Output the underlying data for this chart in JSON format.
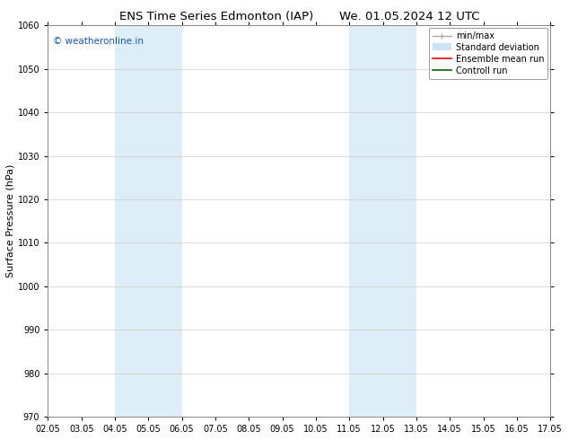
{
  "title_left": "ENS Time Series Edmonton (IAP)",
  "title_right": "We. 01.05.2024 12 UTC",
  "ylabel": "Surface Pressure (hPa)",
  "ylim": [
    970,
    1060
  ],
  "yticks": [
    970,
    980,
    990,
    1000,
    1010,
    1020,
    1030,
    1040,
    1050,
    1060
  ],
  "xlim_min": 0,
  "xlim_max": 15,
  "xtick_labels": [
    "02.05",
    "03.05",
    "04.05",
    "05.05",
    "06.05",
    "07.05",
    "08.05",
    "09.05",
    "10.05",
    "11.05",
    "12.05",
    "13.05",
    "14.05",
    "15.05",
    "16.05",
    "17.05"
  ],
  "xtick_positions": [
    0,
    1,
    2,
    3,
    4,
    5,
    6,
    7,
    8,
    9,
    10,
    11,
    12,
    13,
    14,
    15
  ],
  "shaded_bands": [
    {
      "xmin": 2.0,
      "xmax": 4.0,
      "color": "#ddeef8"
    },
    {
      "xmin": 9.0,
      "xmax": 11.0,
      "color": "#ddeef8"
    }
  ],
  "watermark_text": "© weatheronline.in",
  "watermark_color": "#1155cc",
  "watermark_fontsize": 7.5,
  "background_color": "#ffffff",
  "plot_bg_color": "#ffffff",
  "grid_color": "#cccccc",
  "title_fontsize": 9.5,
  "tick_fontsize": 7,
  "ylabel_fontsize": 8,
  "legend_fontsize": 7
}
